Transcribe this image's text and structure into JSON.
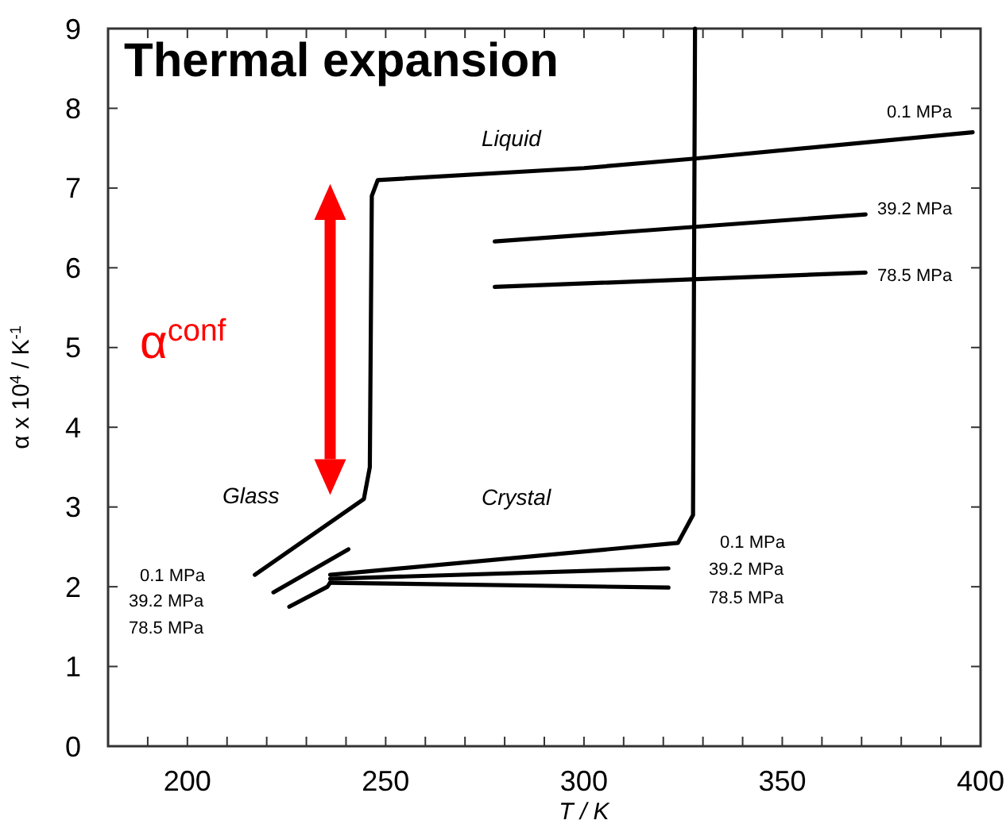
{
  "chart_data": {
    "type": "line",
    "title": "Thermal expansion",
    "xlabel": "T / K",
    "ylabel": "α x 10$^{4}$ / K$^{-1}$",
    "xlim": [
      180,
      400
    ],
    "ylim": [
      0,
      9
    ],
    "xticks": [
      {
        "value": 190,
        "label": null
      },
      200,
      {
        "value": 210,
        "label": null
      },
      {
        "value": 220,
        "label": null
      },
      {
        "value": 230,
        "label": null
      },
      {
        "value": 240,
        "label": null
      },
      250,
      {
        "value": 260,
        "label": null
      },
      {
        "value": 270,
        "label": null
      },
      {
        "value": 280,
        "label": null
      },
      {
        "value": 290,
        "label": null
      },
      300,
      {
        "value": 310,
        "label": null
      },
      {
        "value": 320,
        "label": null
      },
      {
        "value": 330,
        "label": null
      },
      {
        "value": 340,
        "label": null
      },
      350,
      {
        "value": 360,
        "label": null
      },
      {
        "value": 370,
        "label": null
      },
      {
        "value": 380,
        "label": null
      },
      {
        "value": 390,
        "label": null
      },
      400
    ],
    "yticks": [
      0,
      1,
      2,
      3,
      4,
      5,
      6,
      7,
      8,
      9
    ],
    "line_style": "solid",
    "series": [
      {
        "color": "#000000",
        "x": [
          217,
          244.5,
          246,
          246.5,
          248,
          300,
          328,
          398
        ],
        "values": [
          2.15,
          3.1,
          3.5,
          6.9,
          7.1,
          7.25,
          7.37,
          7.7
        ]
      },
      {
        "color": "#000000",
        "x": [
          221.7,
          240.6
        ],
        "values": [
          1.93,
          2.47
        ]
      },
      {
        "color": "#000000",
        "x": [
          225.7,
          235.3,
          236
        ],
        "values": [
          1.75,
          2.0,
          2.05
        ]
      },
      {
        "color": "#000000",
        "x": [
          236,
          323.7,
          327.5,
          328
        ],
        "values": [
          2.15,
          2.55,
          2.9,
          9
        ]
      },
      {
        "color": "#000000",
        "x": [
          236,
          321.3
        ],
        "values": [
          2.1,
          2.23
        ]
      },
      {
        "color": "#000000",
        "x": [
          236,
          321.3
        ],
        "values": [
          2.05,
          1.99
        ]
      },
      {
        "color": "#000000",
        "x": [
          277.5,
          371
        ],
        "values": [
          6.33,
          6.67
        ]
      },
      {
        "color": "#000000",
        "x": [
          277.5,
          371
        ],
        "values": [
          5.76,
          5.94
        ]
      }
    ],
    "annotations": [
      "Liquid",
      "Glass",
      "Crystal",
      "0.1 MPa",
      "39.2 MPa",
      "78.5 MPa",
      "0.1 MPa",
      "39.2 MPa",
      "78.5 MPa",
      "0.1 MPa",
      "39.2 MPa",
      "78.5 MPa",
      "α$^{conf}$"
    ]
  }
}
